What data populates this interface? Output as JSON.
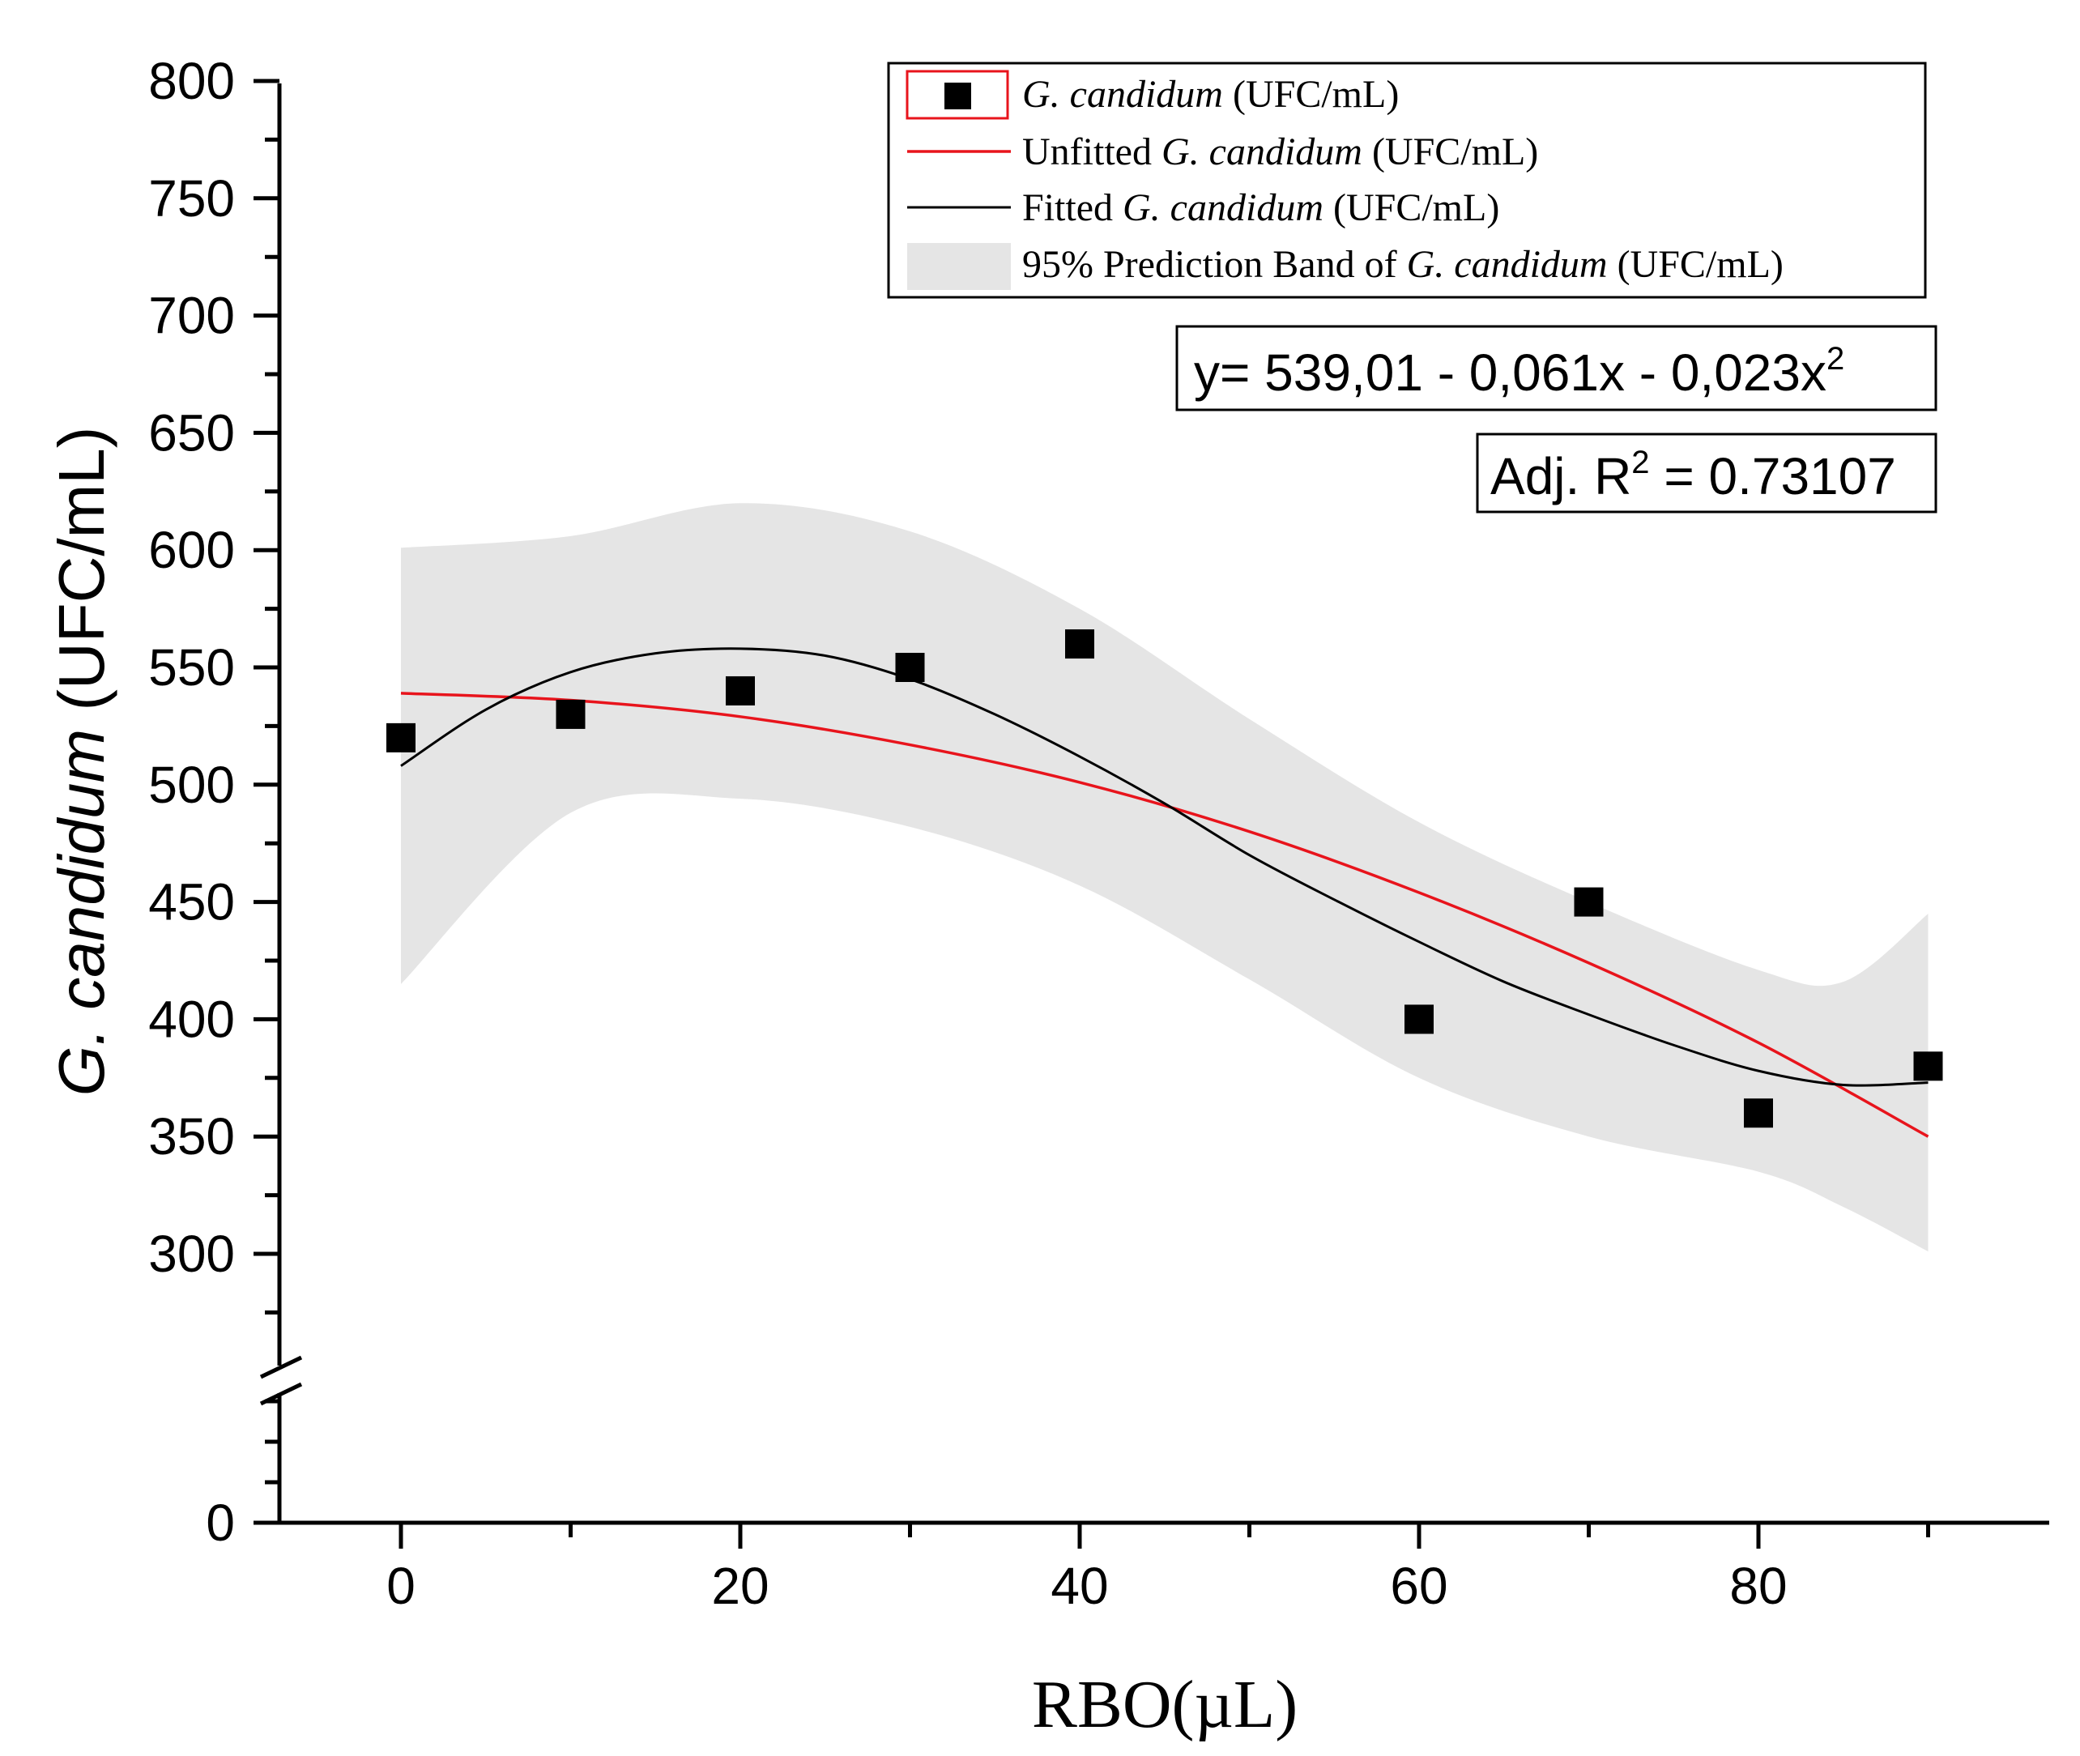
{
  "chart_data": {
    "type": "scatter",
    "title": "",
    "xlabel": "RBO(µL)",
    "ylabel": {
      "italic": "G. candidum",
      "plain": " (UFC/mL)"
    },
    "x_ticks": [
      "0",
      "20",
      "40",
      "60",
      "80"
    ],
    "x_tick_values": [
      0,
      20,
      40,
      60,
      80
    ],
    "y_ticks": [
      "0",
      "300",
      "350",
      "400",
      "450",
      "500",
      "550",
      "600",
      "650",
      "700",
      "750",
      "800"
    ],
    "y_tick_values": [
      0,
      300,
      350,
      400,
      450,
      500,
      550,
      600,
      650,
      700,
      750,
      800
    ],
    "xlim": [
      -7,
      97
    ],
    "ylim_upper_segment": [
      300,
      800
    ],
    "axis_break": "between 0 and 300",
    "series": [
      {
        "name": "G. candidum (UFC/mL)",
        "kind": "points",
        "color": "#000000",
        "x": [
          0,
          10,
          20,
          30,
          40,
          60,
          70,
          80,
          90
        ],
        "y": [
          520,
          530,
          540,
          550,
          560,
          400,
          450,
          360,
          380
        ]
      },
      {
        "name": "Unfitted G. candidum (UFC/mL)",
        "kind": "line",
        "color": "#e8141c",
        "x": [
          0,
          10,
          20,
          30,
          40,
          50,
          60,
          70,
          80,
          90
        ],
        "y": [
          539,
          536,
          529,
          517,
          501,
          480,
          454,
          424,
          390,
          350
        ]
      },
      {
        "name": "Fitted G. candidum (UFC/mL)",
        "kind": "line",
        "color": "#000000",
        "x": [
          0,
          5,
          10,
          15,
          20,
          25,
          30,
          35,
          40,
          45,
          50,
          55,
          60,
          65,
          70,
          75,
          80,
          85,
          90
        ],
        "y": [
          508,
          532,
          548,
          556,
          558,
          555,
          545,
          530,
          512,
          492,
          470,
          451,
          433,
          416,
          402,
          389,
          378,
          372,
          373
        ]
      },
      {
        "name": "95% Prediction Band of G. candidum (UFC/mL)",
        "kind": "band",
        "color": "#e5e5e5",
        "x": [
          0,
          10,
          20,
          30,
          40,
          50,
          60,
          70,
          80,
          85,
          90
        ],
        "upper": [
          601,
          606,
          620,
          608,
          575,
          528,
          484,
          450,
          421,
          416,
          445
        ],
        "lower": [
          415,
          488,
          494,
          482,
          457,
          417,
          375,
          350,
          335,
          320,
          301
        ]
      }
    ],
    "legend": {
      "position": "top-right",
      "entries": [
        {
          "italic": "G. candidum",
          "prefix": "",
          "suffix": " (UFC/mL)"
        },
        {
          "prefix": "Unfitted ",
          "italic": "G. candidum",
          "suffix": " (UFC/mL)"
        },
        {
          "prefix": "Fitted ",
          "italic": "G. candidum",
          "suffix": " (UFC/mL)"
        },
        {
          "prefix": "95% Prediction Band of ",
          "italic": "G. candidum",
          "suffix": " (UFC/mL)"
        }
      ]
    },
    "annotations": {
      "equation": {
        "main": "y= 539,01 - 0,061x - 0,023x",
        "sup": "2"
      },
      "r2": {
        "pre": "Adj. R",
        "sup": "2",
        "post": " = 0.73107"
      }
    }
  }
}
